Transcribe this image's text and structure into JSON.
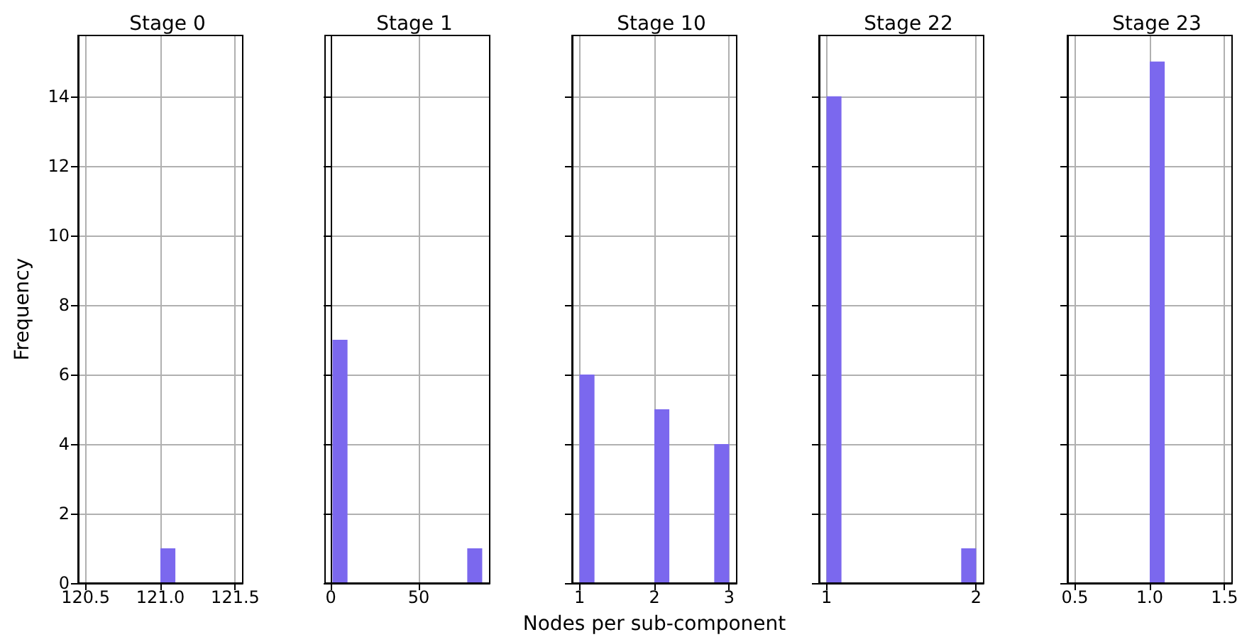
{
  "chart_data": [
    {
      "type": "histogram",
      "title": "Stage 0",
      "ylabel": "Frequency",
      "color": "#7b68ee",
      "bins": [
        120.5,
        120.6,
        120.7,
        120.8,
        120.9,
        121.0,
        121.1,
        121.2,
        121.3,
        121.4,
        121.5
      ],
      "values": [
        0,
        0,
        0,
        0,
        0,
        1,
        0,
        0,
        0,
        0
      ],
      "xlim": [
        120.45,
        121.55
      ],
      "xticks": [
        120.5,
        {
          "value": 121,
          "label": "121.0"
        },
        121.5
      ],
      "ylim": [
        0,
        15.75
      ],
      "yticks": [
        0,
        2,
        4,
        6,
        8,
        10,
        12,
        14
      ],
      "grid": true
    },
    {
      "type": "histogram",
      "title": "Stage 1",
      "color": "#7b68ee",
      "bins": [
        1,
        9.5,
        18,
        26.5,
        35,
        43.5,
        52,
        60.5,
        69,
        77.5,
        86
      ],
      "values": [
        7,
        0,
        0,
        0,
        0,
        0,
        0,
        0,
        0,
        1
      ],
      "xlim": [
        -3.25,
        90.25
      ],
      "xticks": [
        0,
        50
      ],
      "ylim": [
        0,
        15.75
      ],
      "yticks": [
        0,
        2,
        4,
        6,
        8,
        10,
        12,
        14
      ],
      "grid": true,
      "tick_labels": "x"
    },
    {
      "type": "histogram",
      "title": "Stage 10",
      "xlabel": "Nodes per sub-component",
      "color": "#7b68ee",
      "bins": [
        1,
        1.2,
        1.4,
        1.6,
        1.8,
        2,
        2.2,
        2.4,
        2.6,
        2.8,
        3
      ],
      "values": [
        6,
        0,
        0,
        0,
        0,
        5,
        0,
        0,
        0,
        4
      ],
      "xlim": [
        0.9,
        3.1
      ],
      "xticks": [
        1,
        2,
        3
      ],
      "ylim": [
        0,
        15.75
      ],
      "yticks": [
        0,
        2,
        4,
        6,
        8,
        10,
        12,
        14
      ],
      "grid": true,
      "tick_labels": "x"
    },
    {
      "type": "histogram",
      "title": "Stage 22",
      "color": "#7b68ee",
      "bins": [
        1,
        1.1,
        1.2,
        1.3,
        1.4,
        1.5,
        1.6,
        1.7,
        1.8,
        1.9,
        2
      ],
      "values": [
        14,
        0,
        0,
        0,
        0,
        0,
        0,
        0,
        0,
        1
      ],
      "xlim": [
        0.95,
        2.05
      ],
      "xticks": [
        1,
        2
      ],
      "ylim": [
        0,
        15.75
      ],
      "yticks": [
        0,
        2,
        4,
        6,
        8,
        10,
        12,
        14
      ],
      "grid": true,
      "tick_labels": "x"
    },
    {
      "type": "histogram",
      "title": "Stage 23",
      "color": "#7b68ee",
      "bins": [
        0.5,
        0.6,
        0.7,
        0.8,
        0.9,
        1.0,
        1.1,
        1.2,
        1.3,
        1.4,
        1.5
      ],
      "values": [
        0,
        0,
        0,
        0,
        0,
        15,
        0,
        0,
        0,
        0
      ],
      "xlim": [
        0.45,
        1.55
      ],
      "xticks": [
        0.5,
        {
          "value": 1,
          "label": "1.0"
        },
        1.5
      ],
      "ylim": [
        0,
        15.75
      ],
      "yticks": [
        0,
        2,
        4,
        6,
        8,
        10,
        12,
        14
      ],
      "grid": true,
      "tick_labels": "x"
    }
  ]
}
